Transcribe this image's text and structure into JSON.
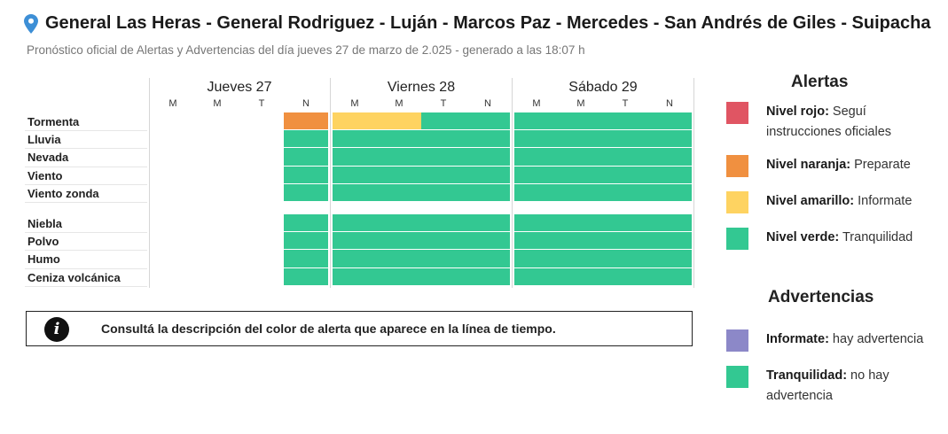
{
  "header": {
    "title": "General Las Heras - General Rodriguez - Luján - Marcos Paz - Mercedes - San Andrés de Giles - Suipacha",
    "subtitle": "Pronóstico oficial de Alertas y Advertencias del día jueves 27 de marzo de 2.025 - generado a las 18:07 h",
    "location_icon": "map-pin-icon"
  },
  "timeline": {
    "days": [
      {
        "label": "Jueves 27",
        "slots": [
          "M",
          "M",
          "T",
          "N"
        ]
      },
      {
        "label": "Viernes 28",
        "slots": [
          "M",
          "M",
          "T",
          "N"
        ]
      },
      {
        "label": "Sábado 29",
        "slots": [
          "M",
          "M",
          "T",
          "N"
        ]
      }
    ],
    "group_alertas": [
      {
        "label": "Tormenta",
        "levels": [
          "none",
          "none",
          "none",
          "naranja",
          "amarillo",
          "amarillo",
          "verde",
          "verde",
          "verde",
          "verde",
          "verde",
          "verde"
        ]
      },
      {
        "label": "Lluvia",
        "levels": [
          "none",
          "none",
          "none",
          "verde",
          "verde",
          "verde",
          "verde",
          "verde",
          "verde",
          "verde",
          "verde",
          "verde"
        ]
      },
      {
        "label": "Nevada",
        "levels": [
          "none",
          "none",
          "none",
          "verde",
          "verde",
          "verde",
          "verde",
          "verde",
          "verde",
          "verde",
          "verde",
          "verde"
        ]
      },
      {
        "label": "Viento",
        "levels": [
          "none",
          "none",
          "none",
          "verde",
          "verde",
          "verde",
          "verde",
          "verde",
          "verde",
          "verde",
          "verde",
          "verde"
        ]
      },
      {
        "label": "Viento zonda",
        "levels": [
          "none",
          "none",
          "none",
          "verde",
          "verde",
          "verde",
          "verde",
          "verde",
          "verde",
          "verde",
          "verde",
          "verde"
        ]
      }
    ],
    "group_advertencias": [
      {
        "label": "Niebla",
        "levels": [
          "none",
          "none",
          "none",
          "verde",
          "verde",
          "verde",
          "verde",
          "verde",
          "verde",
          "verde",
          "verde",
          "verde"
        ]
      },
      {
        "label": "Polvo",
        "levels": [
          "none",
          "none",
          "none",
          "verde",
          "verde",
          "verde",
          "verde",
          "verde",
          "verde",
          "verde",
          "verde",
          "verde"
        ]
      },
      {
        "label": "Humo",
        "levels": [
          "none",
          "none",
          "none",
          "verde",
          "verde",
          "verde",
          "verde",
          "verde",
          "verde",
          "verde",
          "verde",
          "verde"
        ]
      },
      {
        "label": "Ceniza volcánica",
        "levels": [
          "none",
          "none",
          "none",
          "verde",
          "verde",
          "verde",
          "verde",
          "verde",
          "verde",
          "verde",
          "verde",
          "verde"
        ]
      }
    ]
  },
  "info_box": {
    "icon": "info-icon",
    "text": "Consultá la descripción del color de alerta que aparece en la línea de tiempo."
  },
  "legend": {
    "alertas_title": "Alertas",
    "alertas": [
      {
        "level": "rojo",
        "name": "Nivel rojo:",
        "desc": "Seguí instrucciones oficiales"
      },
      {
        "level": "naranja",
        "name": "Nivel naranja:",
        "desc": "Preparate"
      },
      {
        "level": "amarillo",
        "name": "Nivel amarillo:",
        "desc": "Informate"
      },
      {
        "level": "verde",
        "name": "Nivel verde:",
        "desc": "Tranquilidad"
      }
    ],
    "advertencias_title": "Advertencias",
    "advertencias": [
      {
        "level": "violeta",
        "name": "Informate:",
        "desc": "hay advertencia"
      },
      {
        "level": "verde",
        "name": "Tranquilidad:",
        "desc": "no hay advertencia"
      }
    ]
  },
  "colors": {
    "rojo": "#e05563",
    "naranja": "#f09040",
    "amarillo": "#fed361",
    "verde": "#33c892",
    "violeta": "#8c88c8",
    "pin": "#3d8fd6"
  }
}
